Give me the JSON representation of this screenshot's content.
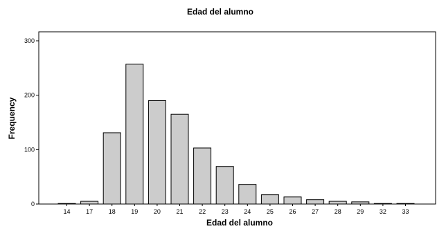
{
  "chart_data": {
    "type": "bar",
    "title": "Edad del alumno",
    "xlabel": "Edad del alumno",
    "ylabel": "Frequency",
    "categories": [
      "14",
      "17",
      "18",
      "19",
      "20",
      "21",
      "22",
      "23",
      "24",
      "25",
      "26",
      "27",
      "28",
      "29",
      "32",
      "33"
    ],
    "values": [
      1,
      5,
      131,
      257,
      190,
      165,
      103,
      69,
      36,
      17,
      13,
      8,
      5,
      4,
      1,
      1
    ],
    "ylim": [
      0,
      300
    ],
    "yticks": [
      0,
      100,
      200,
      300
    ],
    "grid": false,
    "legend": "none",
    "colors": {
      "bar_fill": "#cccccc",
      "bar_stroke": "#000000",
      "axis": "#000000"
    }
  }
}
